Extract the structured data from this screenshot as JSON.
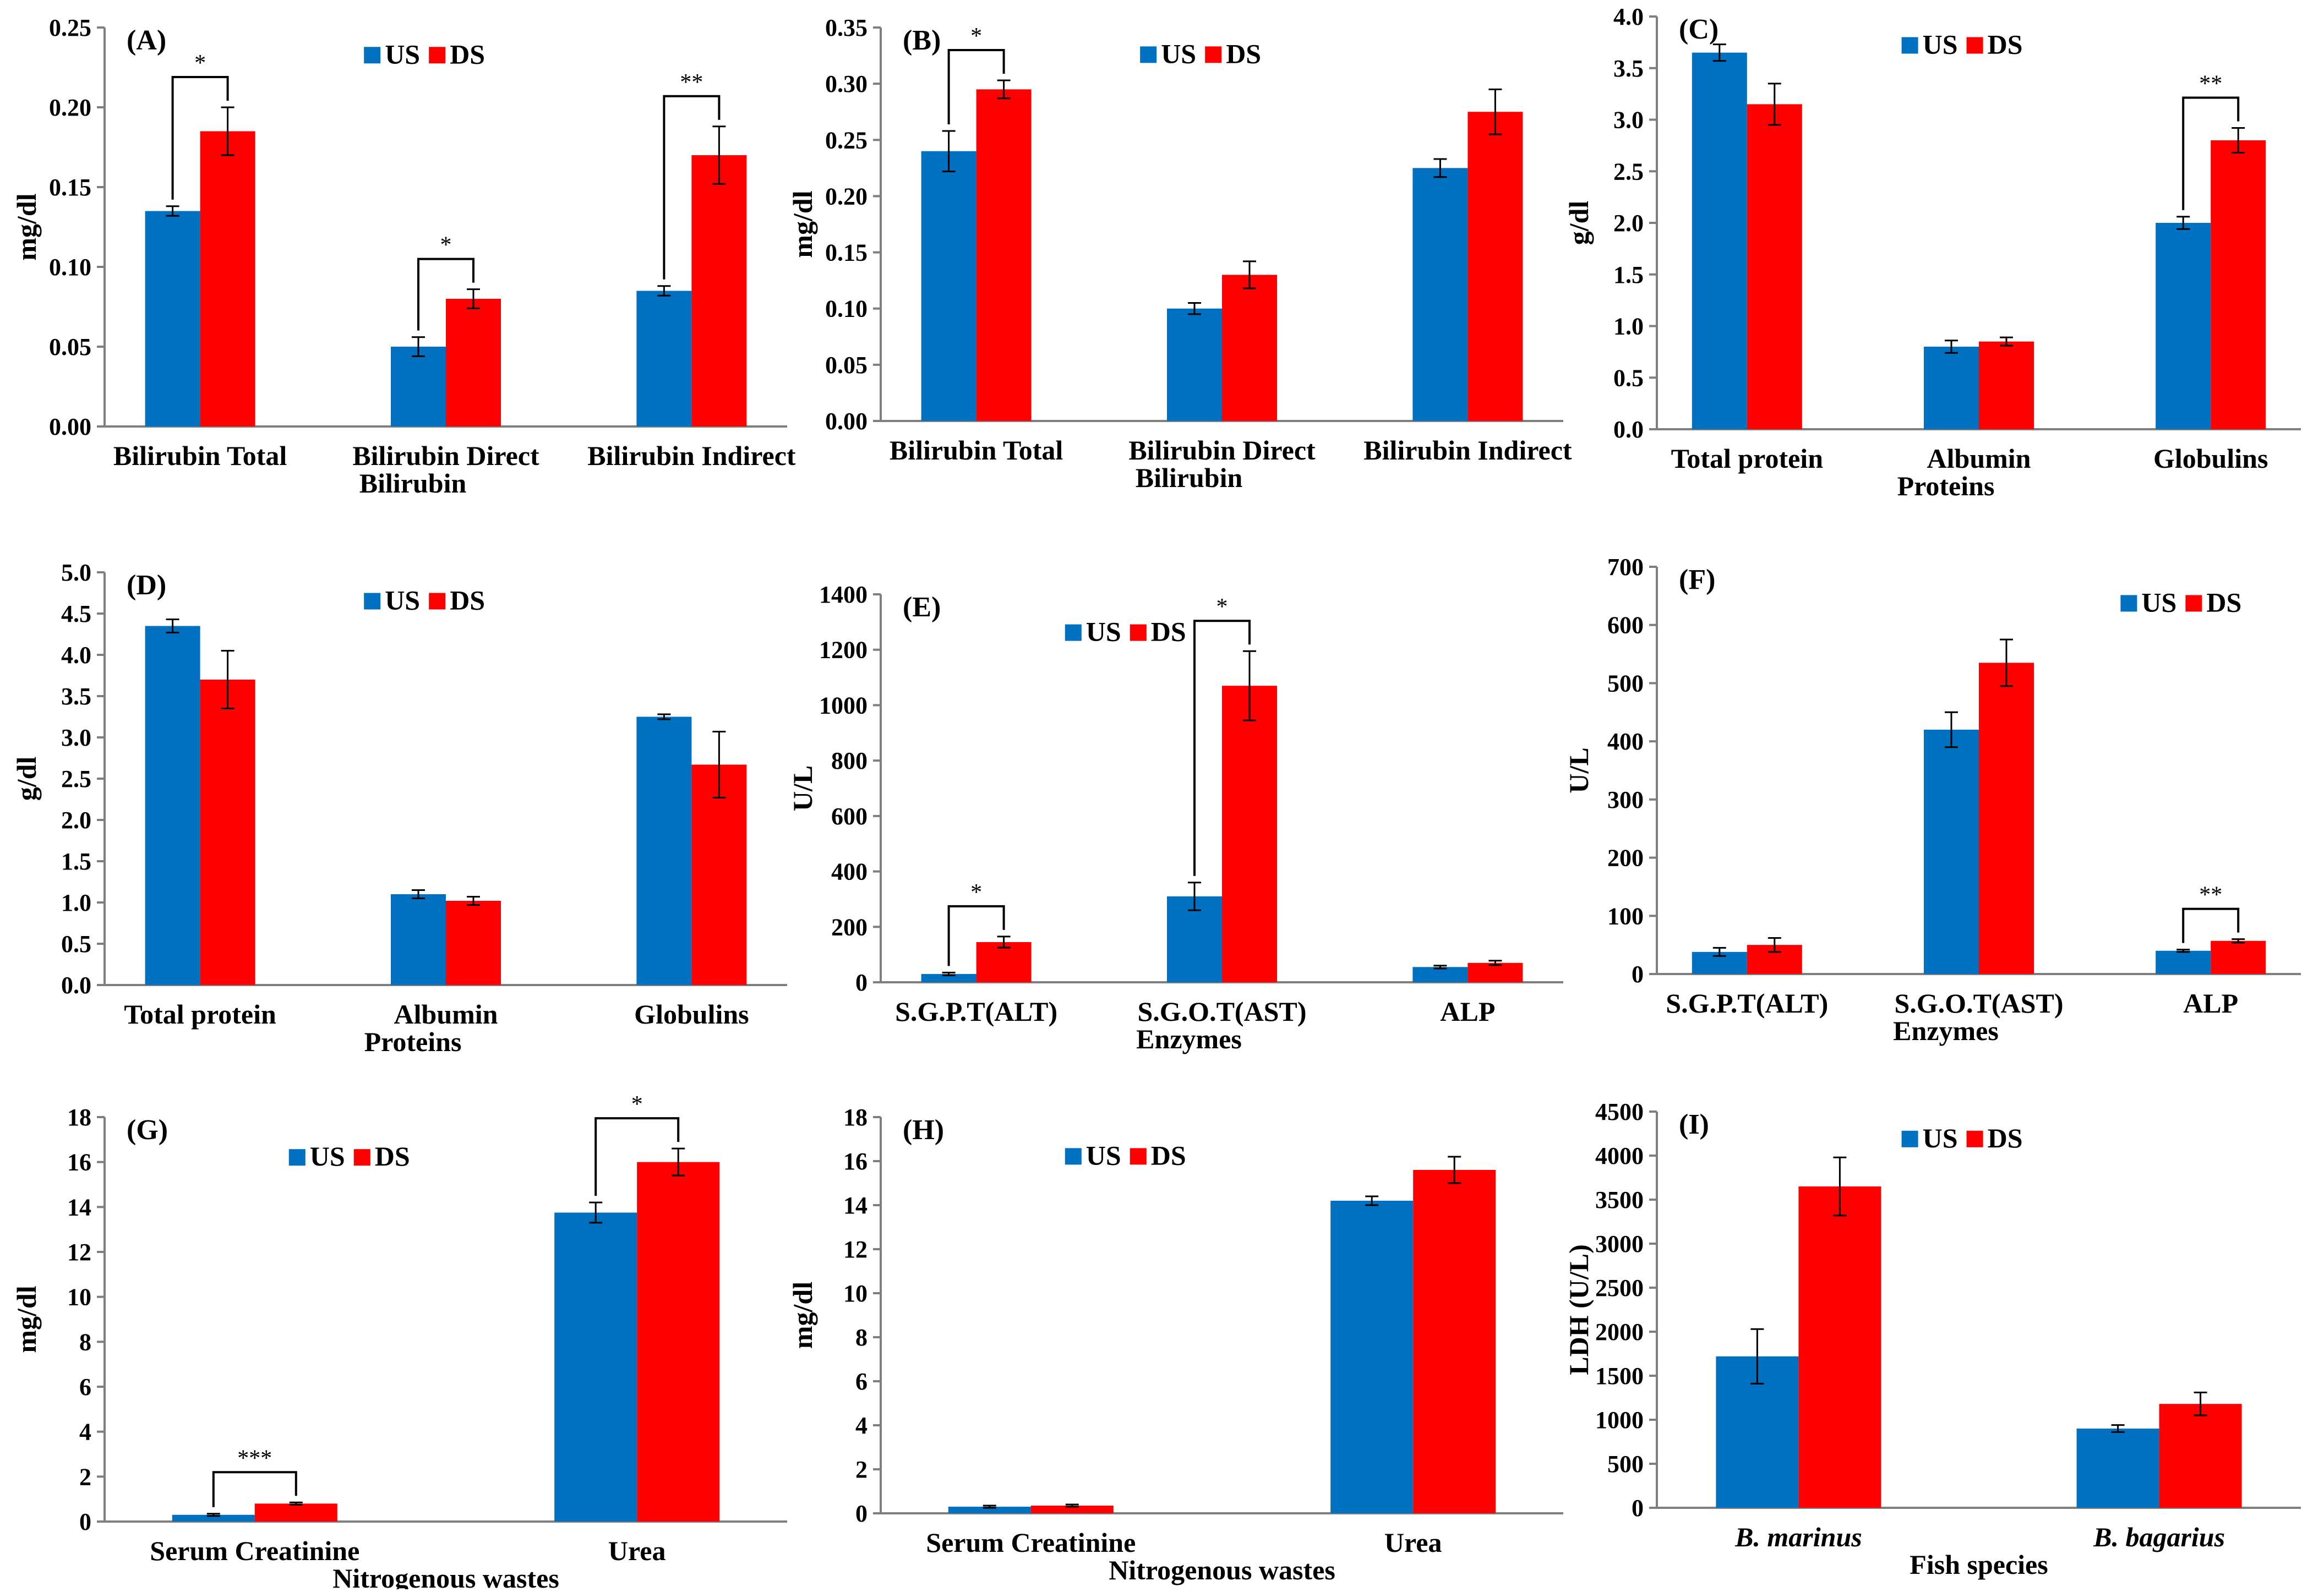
{
  "legend": {
    "us": "US",
    "ds": "DS"
  },
  "colors": {
    "us": "#0070C0",
    "ds": "#FF0000",
    "axis": "#7f7f7f",
    "text": "#000000"
  },
  "chart_data": [
    {
      "type": "bar",
      "panel": "(A)",
      "ylabel": "mg/dl",
      "xlabel": "",
      "ylim": [
        0,
        0.25
      ],
      "yticks": [
        "0.00",
        "0.05",
        "0.10",
        "0.15",
        "0.20",
        "0.25"
      ],
      "categories": [
        [
          "Bilirubin Total"
        ],
        [
          "Bilirubin Direct",
          "Bilirubin"
        ],
        [
          "Bilirubin Indirect"
        ]
      ],
      "series": [
        {
          "name": "US",
          "values": [
            0.135,
            0.05,
            0.085
          ],
          "errors": [
            0.003,
            0.006,
            0.003
          ]
        },
        {
          "name": "DS",
          "values": [
            0.185,
            0.08,
            0.17
          ],
          "errors": [
            0.015,
            0.006,
            0.018
          ]
        }
      ],
      "significance": [
        {
          "category": 0,
          "label": "*"
        },
        {
          "category": 1,
          "label": "*"
        },
        {
          "category": 2,
          "label": "**"
        }
      ],
      "legend_position": "top-center"
    },
    {
      "type": "bar",
      "panel": "(B)",
      "ylabel": "mg/dl",
      "xlabel": "",
      "ylim": [
        0,
        0.35
      ],
      "yticks": [
        "0.00",
        "0.05",
        "0.10",
        "0.15",
        "0.20",
        "0.25",
        "0.30",
        "0.35"
      ],
      "categories": [
        [
          "Bilirubin Total"
        ],
        [
          "Bilirubin Direct",
          "Bilirubin"
        ],
        [
          "Bilirubin Indirect"
        ]
      ],
      "series": [
        {
          "name": "US",
          "values": [
            0.24,
            0.1,
            0.225
          ],
          "errors": [
            0.018,
            0.005,
            0.008
          ]
        },
        {
          "name": "DS",
          "values": [
            0.295,
            0.13,
            0.275
          ],
          "errors": [
            0.008,
            0.012,
            0.02
          ]
        }
      ],
      "significance": [
        {
          "category": 0,
          "label": "*"
        }
      ],
      "legend_position": "top-center"
    },
    {
      "type": "bar",
      "panel": "(C)",
      "ylabel": "g/dl",
      "xlabel": "",
      "ylim": [
        0,
        4.0
      ],
      "yticks": [
        "0.0",
        "0.5",
        "1.0",
        "1.5",
        "2.0",
        "2.5",
        "3.0",
        "3.5",
        "4.0"
      ],
      "categories": [
        [
          "Total protein"
        ],
        [
          "Albumin",
          "Proteins"
        ],
        [
          "Globulins"
        ]
      ],
      "series": [
        {
          "name": "US",
          "values": [
            3.65,
            0.8,
            2.0
          ],
          "errors": [
            0.08,
            0.06,
            0.06
          ]
        },
        {
          "name": "DS",
          "values": [
            3.15,
            0.85,
            2.8
          ],
          "errors": [
            0.2,
            0.04,
            0.12
          ]
        }
      ],
      "significance": [
        {
          "category": 2,
          "label": "**"
        }
      ],
      "legend_position": "top-center"
    },
    {
      "type": "bar",
      "panel": "(D)",
      "ylabel": "g/dl",
      "xlabel": "",
      "ylim": [
        0,
        5.0
      ],
      "yticks": [
        "0.0",
        "0.5",
        "1.0",
        "1.5",
        "2.0",
        "2.5",
        "3.0",
        "3.5",
        "4.0",
        "4.5",
        "5.0"
      ],
      "categories": [
        [
          "Total protein"
        ],
        [
          "Albumin",
          "Proteins"
        ],
        [
          "Globulins"
        ]
      ],
      "series": [
        {
          "name": "US",
          "values": [
            4.35,
            1.1,
            3.25
          ],
          "errors": [
            0.08,
            0.05,
            0.03
          ]
        },
        {
          "name": "DS",
          "values": [
            3.7,
            1.02,
            2.67
          ],
          "errors": [
            0.35,
            0.05,
            0.4
          ]
        }
      ],
      "significance": [],
      "legend_position": "top-center"
    },
    {
      "type": "bar",
      "panel": "(E)",
      "ylabel": "U/L",
      "xlabel": "",
      "ylim": [
        0,
        1400
      ],
      "yticks": [
        "0",
        "200",
        "400",
        "600",
        "800",
        "1000",
        "1200",
        "1400"
      ],
      "categories": [
        [
          "S.G.P.T(ALT)"
        ],
        [
          "S.G.O.T(AST)",
          "Enzymes"
        ],
        [
          "ALP"
        ]
      ],
      "series": [
        {
          "name": "US",
          "values": [
            30,
            310,
            55
          ],
          "errors": [
            5,
            50,
            5
          ]
        },
        {
          "name": "DS",
          "values": [
            145,
            1070,
            70
          ],
          "errors": [
            20,
            125,
            8
          ]
        }
      ],
      "significance": [
        {
          "category": 0,
          "label": "*"
        },
        {
          "category": 1,
          "label": "*"
        }
      ],
      "legend_position": "top-left"
    },
    {
      "type": "bar",
      "panel": "(F)",
      "ylabel": "U/L",
      "xlabel": "",
      "ylim": [
        0,
        700
      ],
      "yticks": [
        "0",
        "100",
        "200",
        "300",
        "400",
        "500",
        "600",
        "700"
      ],
      "categories": [
        [
          "S.G.P.T(ALT)"
        ],
        [
          "S.G.O.T(AST)",
          "Enzymes"
        ],
        [
          "ALP"
        ]
      ],
      "series": [
        {
          "name": "US",
          "values": [
            38,
            420,
            40
          ],
          "errors": [
            7,
            30,
            2
          ]
        },
        {
          "name": "DS",
          "values": [
            50,
            535,
            57
          ],
          "errors": [
            12,
            40,
            3
          ]
        }
      ],
      "significance": [
        {
          "category": 2,
          "label": "**"
        }
      ],
      "legend_position": "top-right"
    },
    {
      "type": "bar",
      "panel": "(G)",
      "ylabel": "mg/dl",
      "xlabel": "",
      "ylim": [
        0,
        18
      ],
      "yticks": [
        "0",
        "2",
        "4",
        "6",
        "8",
        "10",
        "12",
        "14",
        "16",
        "18"
      ],
      "categories": [
        [
          "Serum Creatinine"
        ],
        [
          "Urea"
        ]
      ],
      "subtitle": "Nitrogenous wastes",
      "series": [
        {
          "name": "US",
          "values": [
            0.3,
            13.75
          ],
          "errors": [
            0.05,
            0.45
          ]
        },
        {
          "name": "DS",
          "values": [
            0.8,
            16.0
          ],
          "errors": [
            0.05,
            0.6
          ]
        }
      ],
      "significance": [
        {
          "category": 0,
          "label": "***"
        },
        {
          "category": 1,
          "label": "*"
        }
      ],
      "legend_position": "top-left"
    },
    {
      "type": "bar",
      "panel": "(H)",
      "ylabel": "mg/dl",
      "xlabel": "",
      "ylim": [
        0,
        18
      ],
      "yticks": [
        "0",
        "2",
        "4",
        "6",
        "8",
        "10",
        "12",
        "14",
        "16",
        "18"
      ],
      "categories": [
        [
          "Serum Creatinine"
        ],
        [
          "Urea"
        ]
      ],
      "subtitle": "Nitrogenous wastes",
      "series": [
        {
          "name": "US",
          "values": [
            0.3,
            14.2
          ],
          "errors": [
            0.05,
            0.2
          ]
        },
        {
          "name": "DS",
          "values": [
            0.35,
            15.6
          ],
          "errors": [
            0.05,
            0.6
          ]
        }
      ],
      "significance": [],
      "legend_position": "top-left"
    },
    {
      "type": "bar",
      "panel": "(I)",
      "ylabel": "LDH (U/L)",
      "xlabel": "Fish species",
      "ylim": [
        0,
        4500
      ],
      "yticks": [
        "0",
        "500",
        "1000",
        "1500",
        "2000",
        "2500",
        "3000",
        "3500",
        "4000",
        "4500"
      ],
      "categories": [
        [
          "B. marinus"
        ],
        [
          "B. bagarius"
        ]
      ],
      "italic_categories": true,
      "series": [
        {
          "name": "US",
          "values": [
            1720,
            900
          ],
          "errors": [
            310,
            40
          ]
        },
        {
          "name": "DS",
          "values": [
            3650,
            1180
          ],
          "errors": [
            330,
            130
          ]
        }
      ],
      "significance": [],
      "legend_position": "top-center"
    }
  ]
}
